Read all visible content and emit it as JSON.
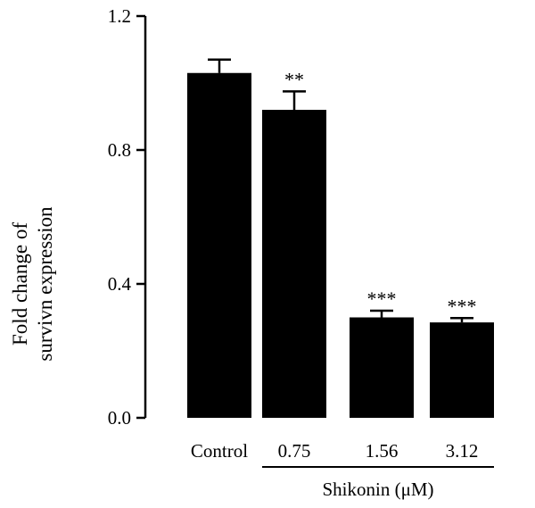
{
  "chart_data": {
    "type": "bar",
    "title": "",
    "xlabel": "",
    "ylabel_lines": [
      "Fold change of",
      "survivn expression"
    ],
    "ylim": [
      0,
      1.2
    ],
    "yticks": [
      "0.0",
      "0.4",
      "0.8",
      "1.2"
    ],
    "ytick_values": [
      0,
      0.4,
      0.8,
      1.2
    ],
    "categories": [
      "Control",
      "0.75",
      "1.56",
      "3.12"
    ],
    "values": [
      1.03,
      0.92,
      0.3,
      0.285
    ],
    "errors": [
      0.04,
      0.055,
      0.02,
      0.013
    ],
    "significance": [
      "",
      "**",
      "***",
      "***"
    ],
    "group_label": "Shikonin (μM)",
    "group_categories": [
      1,
      3
    ],
    "bar_color": "#000000",
    "grid": false
  }
}
